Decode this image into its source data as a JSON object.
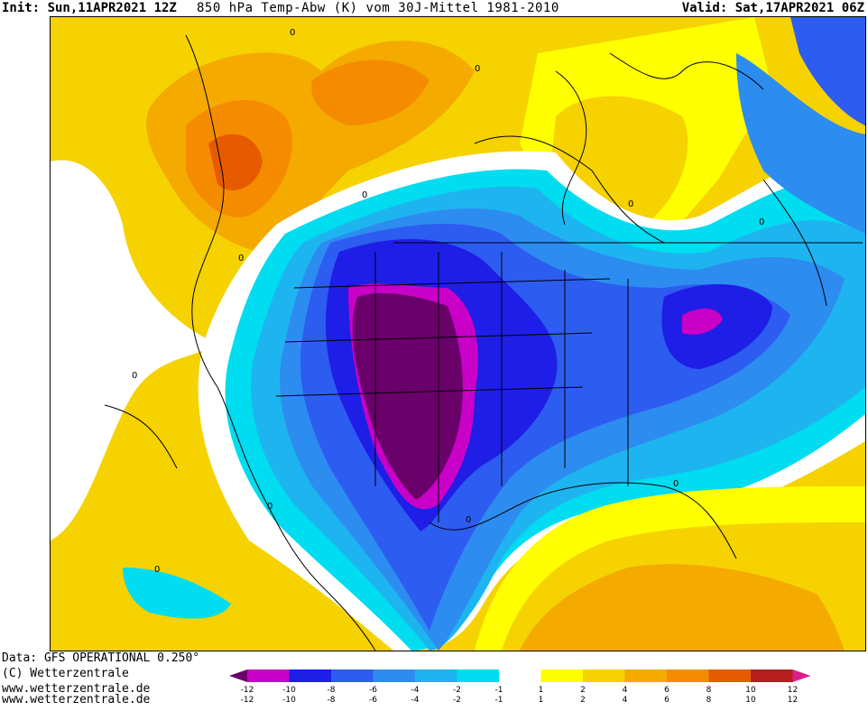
{
  "header": {
    "init": "Init: Sun,11APR2021 12Z",
    "title": "850 hPa Temp-Abw (K) vom 30J-Mittel 1981-2010",
    "valid": "Valid: Sat,17APR2021 06Z"
  },
  "footer": {
    "data_source": "Data: GFS OPERATIONAL 0.250°",
    "copyright": "(C) Wetterzentrale",
    "url1": "www.wetterzentrale.de",
    "url2": "www.wetterzentrale.de"
  },
  "contour_labels": [
    "0",
    "0",
    "0",
    "0",
    "0",
    "0",
    "0",
    "0",
    "0",
    "0",
    "0"
  ],
  "legend": {
    "colors": [
      "#6a006a",
      "#c800c8",
      "#1e1ee6",
      "#2d5cf0",
      "#2d8cf0",
      "#1eb4f0",
      "#00dcf0",
      "#ffffff",
      "#ffff00",
      "#f5d200",
      "#f5aa00",
      "#f58c00",
      "#e65a00",
      "#b41e1e",
      "#dc1e8c"
    ],
    "upper_labels": [
      "-12",
      "-10",
      "-8",
      "-6",
      "-4",
      "-2",
      "-1",
      "1",
      "2",
      "4",
      "6",
      "8",
      "10",
      "12"
    ],
    "lower_labels": [
      "-12",
      "-10",
      "-8",
      "-6",
      "-4",
      "-2",
      "-1",
      "1",
      "2",
      "4",
      "6",
      "8",
      "10",
      "12"
    ]
  }
}
